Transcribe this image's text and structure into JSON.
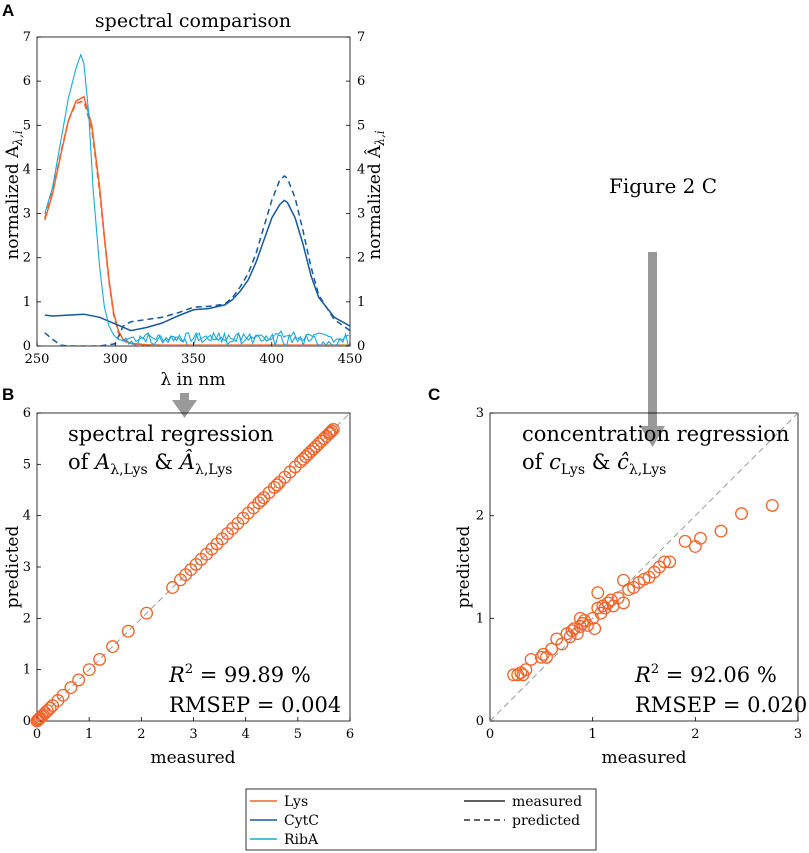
{
  "colors": {
    "lys": "#f0642a",
    "cytc": "#1458a0",
    "riba": "#1aa7d9",
    "arrow": "#999999",
    "diagonal": "#9a9a9a"
  },
  "panels": {
    "a": {
      "letter": "A",
      "title": "spectral comparison",
      "xlabel": "λ in nm",
      "ylabel_left": "normalized A",
      "ylabel_left_sub": "λ,i",
      "ylabel_right": "normalized Â",
      "ylabel_right_sub": "λ,i",
      "xticks": [
        "250",
        "300",
        "350",
        "400",
        "450"
      ],
      "yticks": [
        "0",
        "1",
        "2",
        "3",
        "4",
        "5",
        "6",
        "7"
      ]
    },
    "b": {
      "letter": "B",
      "annotation_line1": "spectral regression",
      "annotation_of": "of ",
      "annotation_A": "A",
      "annotation_sub1": "λ,Lys",
      "annotation_amp": " & ",
      "annotation_Ahat": "Â",
      "annotation_sub2": "λ,Lys",
      "xlabel": "measured",
      "ylabel": "predicted",
      "r2_label": "R",
      "r2_value": " = 99.89 %",
      "rmsep": "RMSEP = 0.004",
      "xticks": [
        "0",
        "1",
        "2",
        "3",
        "4",
        "5",
        "6"
      ],
      "yticks": [
        "0",
        "1",
        "2",
        "3",
        "4",
        "5",
        "6"
      ]
    },
    "c": {
      "letter": "C",
      "annotation_line1": "concentration regression",
      "annotation_of": "of ",
      "annotation_c": "c",
      "annotation_sub1": "Lys",
      "annotation_amp": " & ",
      "annotation_chat": "ĉ",
      "annotation_sub2": "λ,Lys",
      "xlabel": "measured",
      "ylabel": "predicted",
      "r2_label": "R",
      "r2_value": " = 92.06 %",
      "rmsep": "RMSEP = 0.020",
      "xticks": [
        "0",
        "1",
        "2",
        "3"
      ],
      "yticks": [
        "0",
        "1",
        "2",
        "3"
      ]
    }
  },
  "figure_label": "Figure 2 C",
  "legend": {
    "lys": "Lys",
    "cytc": "CytC",
    "riba": "RibA",
    "measured": "measured",
    "predicted": "predicted"
  },
  "chart_data": [
    {
      "type": "line",
      "title": "spectral comparison",
      "xlabel": "λ in nm",
      "ylabel": "normalized A_λ,i",
      "xlim": [
        250,
        450
      ],
      "ylim": [
        0,
        7
      ],
      "series": [
        {
          "name": "Lys measured",
          "x": [
            255,
            260,
            265,
            270,
            275,
            280,
            285,
            290,
            293,
            296,
            299,
            302,
            305,
            310,
            320,
            330,
            350,
            400,
            450
          ],
          "y": [
            2.85,
            3.45,
            4.3,
            5.1,
            5.55,
            5.65,
            5.0,
            3.6,
            2.5,
            1.5,
            0.75,
            0.35,
            0.15,
            0.06,
            0.03,
            0.02,
            0.02,
            0.02,
            0.02
          ]
        },
        {
          "name": "Lys predicted",
          "x": [
            255,
            260,
            265,
            270,
            275,
            280,
            285,
            290,
            293,
            296,
            299,
            302,
            305,
            310,
            320,
            330,
            350,
            400,
            450
          ],
          "y": [
            2.9,
            3.5,
            4.35,
            5.1,
            5.5,
            5.55,
            4.9,
            3.5,
            2.45,
            1.45,
            0.7,
            0.3,
            0.12,
            0.05,
            0.02,
            0.01,
            0.01,
            0.01,
            0.01
          ]
        },
        {
          "name": "CytC measured",
          "x": [
            255,
            260,
            270,
            280,
            290,
            300,
            310,
            320,
            330,
            340,
            350,
            360,
            370,
            375,
            380,
            385,
            390,
            395,
            400,
            405,
            408,
            410,
            415,
            420,
            425,
            430,
            440,
            450
          ],
          "y": [
            0.7,
            0.68,
            0.7,
            0.72,
            0.65,
            0.5,
            0.35,
            0.42,
            0.52,
            0.68,
            0.82,
            0.85,
            0.93,
            1.05,
            1.25,
            1.5,
            1.9,
            2.4,
            2.9,
            3.2,
            3.3,
            3.25,
            2.9,
            2.3,
            1.6,
            1.1,
            0.65,
            0.45
          ]
        },
        {
          "name": "CytC predicted",
          "x": [
            255,
            260,
            265,
            270,
            280,
            290,
            300,
            305,
            310,
            320,
            330,
            340,
            350,
            360,
            370,
            375,
            380,
            385,
            390,
            395,
            400,
            405,
            408,
            410,
            415,
            420,
            425,
            430,
            440,
            450
          ],
          "y": [
            0.3,
            0.15,
            0.02,
            0.0,
            0.0,
            0.0,
            0.05,
            0.45,
            0.55,
            0.6,
            0.65,
            0.75,
            0.88,
            0.9,
            0.95,
            1.1,
            1.35,
            1.65,
            2.1,
            2.7,
            3.3,
            3.75,
            3.85,
            3.8,
            3.35,
            2.6,
            1.8,
            1.15,
            0.6,
            0.35
          ]
        },
        {
          "name": "RibA measured",
          "x": [
            255,
            260,
            265,
            270,
            275,
            278,
            280,
            283,
            286,
            290,
            293,
            296,
            299,
            302,
            305,
            310,
            450
          ],
          "y": [
            3.0,
            3.6,
            4.6,
            5.6,
            6.3,
            6.6,
            6.4,
            5.3,
            3.5,
            1.8,
            0.9,
            0.45,
            0.25,
            0.15,
            0.12,
            0.1,
            0.1
          ]
        },
        {
          "name": "RibA predicted",
          "x": [
            310,
            450
          ],
          "y": [
            0.1,
            0.1
          ]
        }
      ]
    },
    {
      "type": "scatter",
      "title": "spectral regression",
      "xlabel": "measured",
      "ylabel": "predicted",
      "xlim": [
        0,
        6
      ],
      "ylim": [
        0,
        6
      ],
      "series": [
        {
          "name": "Lys",
          "x": [
            0.0,
            0.02,
            0.04,
            0.06,
            0.09,
            0.12,
            0.16,
            0.2,
            0.25,
            0.3,
            0.4,
            0.5,
            0.65,
            0.8,
            1.0,
            1.2,
            1.45,
            1.75,
            2.1,
            2.6,
            2.75,
            2.85,
            2.95,
            3.05,
            3.15,
            3.25,
            3.35,
            3.45,
            3.55,
            3.65,
            3.75,
            3.85,
            3.95,
            4.05,
            4.15,
            4.25,
            4.3,
            4.35,
            4.45,
            4.55,
            4.6,
            4.65,
            4.75,
            4.85,
            4.95,
            5.05,
            5.1,
            5.15,
            5.2,
            5.25,
            5.3,
            5.35,
            5.4,
            5.45,
            5.5,
            5.55,
            5.6,
            5.62,
            5.65,
            5.68
          ],
          "y": [
            0.0,
            0.02,
            0.04,
            0.06,
            0.09,
            0.12,
            0.16,
            0.2,
            0.25,
            0.3,
            0.4,
            0.5,
            0.65,
            0.8,
            1.0,
            1.2,
            1.45,
            1.75,
            2.1,
            2.6,
            2.75,
            2.85,
            2.95,
            3.05,
            3.15,
            3.25,
            3.35,
            3.45,
            3.55,
            3.65,
            3.75,
            3.85,
            3.95,
            4.05,
            4.15,
            4.25,
            4.3,
            4.35,
            4.45,
            4.55,
            4.6,
            4.65,
            4.75,
            4.85,
            4.95,
            5.05,
            5.1,
            5.15,
            5.2,
            5.25,
            5.3,
            5.35,
            5.4,
            5.45,
            5.5,
            5.55,
            5.6,
            5.62,
            5.65,
            5.68
          ]
        },
        {
          "name": "identity",
          "x": [
            0,
            6
          ],
          "y": [
            0,
            6
          ]
        }
      ]
    },
    {
      "type": "scatter",
      "title": "concentration regression",
      "xlabel": "measured",
      "ylabel": "predicted",
      "xlim": [
        0,
        3
      ],
      "ylim": [
        0,
        3
      ],
      "series": [
        {
          "name": "Lys",
          "x": [
            0.23,
            0.27,
            0.3,
            0.32,
            0.35,
            0.4,
            0.5,
            0.52,
            0.55,
            0.6,
            0.65,
            0.7,
            0.75,
            0.78,
            0.8,
            0.82,
            0.85,
            0.88,
            0.9,
            0.92,
            0.95,
            1.0,
            1.02,
            1.05,
            1.08,
            1.1,
            1.12,
            1.15,
            1.18,
            1.2,
            1.25,
            1.3,
            1.35,
            1.4,
            1.45,
            1.5,
            1.55,
            1.6,
            1.65,
            1.7,
            1.75,
            1.9,
            2.0,
            2.05,
            2.25,
            2.45,
            2.75,
            0.88,
            1.05,
            1.3
          ],
          "y": [
            0.45,
            0.45,
            0.47,
            0.45,
            0.5,
            0.6,
            0.62,
            0.65,
            0.62,
            0.7,
            0.8,
            0.75,
            0.85,
            0.82,
            0.88,
            0.9,
            0.85,
            0.92,
            0.95,
            0.98,
            0.93,
            1.0,
            0.9,
            1.1,
            1.05,
            1.12,
            1.1,
            1.15,
            1.18,
            1.12,
            1.2,
            1.15,
            1.28,
            1.3,
            1.35,
            1.38,
            1.4,
            1.45,
            1.5,
            1.55,
            1.55,
            1.75,
            1.7,
            1.78,
            1.85,
            2.02,
            2.1,
            1.0,
            1.25,
            1.37
          ]
        },
        {
          "name": "identity",
          "x": [
            0,
            3
          ],
          "y": [
            0,
            3
          ]
        }
      ]
    }
  ]
}
